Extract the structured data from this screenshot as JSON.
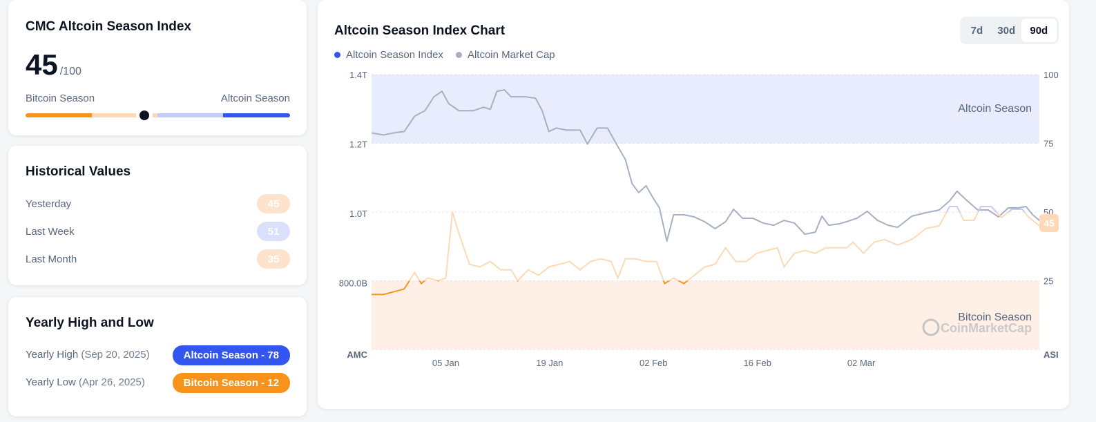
{
  "index_card": {
    "title": "CMC Altcoin Season Index",
    "value": "45",
    "max": "/100",
    "left_label": "Bitcoin Season",
    "right_label": "Altcoin Season",
    "gauge_value": 45
  },
  "historical": {
    "title": "Historical Values",
    "rows": [
      {
        "label": "Yesterday",
        "value": "45",
        "color": "#fde3cc"
      },
      {
        "label": "Last Week",
        "value": "51",
        "color": "#d9e0fb"
      },
      {
        "label": "Last Month",
        "value": "35",
        "color": "#fde3cc"
      }
    ]
  },
  "yearly": {
    "title": "Yearly High and Low",
    "rows": [
      {
        "label": "Yearly High",
        "date": "(Sep 20, 2025)",
        "badge": "Altcoin Season - 78",
        "color": "#3356f0"
      },
      {
        "label": "Yearly Low",
        "date": "(Apr 26, 2025)",
        "badge": "Bitcoin Season - 12",
        "color": "#f7931a"
      }
    ]
  },
  "colors": {
    "orange": "#f7931a",
    "peach": "#fdd9b5",
    "light_blue": "#c3cbf8",
    "blue": "#3356f0",
    "gray": "#a6b0c3"
  },
  "chart_data": {
    "type": "line",
    "title": "Altcoin Season Index Chart",
    "tabs": [
      "7d",
      "30d",
      "90d"
    ],
    "active_tab": "90d",
    "legend": [
      "Altcoin Season Index",
      "Altcoin Market Cap"
    ],
    "left_axis": {
      "label": "AMC",
      "ticks": [
        {
          "v": 1400,
          "t": "1.4T"
        },
        {
          "v": 1200,
          "t": "1.2T"
        },
        {
          "v": 1000,
          "t": "1.0T"
        },
        {
          "v": 800,
          "t": "800.0B"
        }
      ],
      "range": [
        608,
        1400
      ],
      "unit": "B USD"
    },
    "right_axis": {
      "label": "ASI",
      "ticks": [
        100,
        75,
        50,
        25
      ],
      "range": [
        0,
        100
      ]
    },
    "x_ticks": [
      {
        "d": 10,
        "t": "05 Jan"
      },
      {
        "d": 24,
        "t": "19 Jan"
      },
      {
        "d": 38,
        "t": "02 Feb"
      },
      {
        "d": 52,
        "t": "16 Feb"
      },
      {
        "d": 66,
        "t": "02 Mar"
      }
    ],
    "x_range": [
      0,
      90
    ],
    "zones": {
      "altcoin": "Altcoin Season",
      "bitcoin": "Bitcoin Season"
    },
    "watermark": "CoinMarketCap",
    "current_label": "45",
    "series": [
      {
        "name": "Altcoin Market Cap",
        "axis": "left",
        "points": [
          [
            0,
            1232
          ],
          [
            1.6,
            1226
          ],
          [
            3,
            1232
          ],
          [
            4.4,
            1236
          ],
          [
            5.8,
            1280
          ],
          [
            7.2,
            1296
          ],
          [
            8.4,
            1336
          ],
          [
            9.5,
            1352
          ],
          [
            10.4,
            1316
          ],
          [
            11.8,
            1296
          ],
          [
            13.7,
            1296
          ],
          [
            15.1,
            1306
          ],
          [
            16,
            1300
          ],
          [
            16.9,
            1352
          ],
          [
            17.9,
            1356
          ],
          [
            18.8,
            1336
          ],
          [
            20.7,
            1336
          ],
          [
            22.1,
            1332
          ],
          [
            23,
            1296
          ],
          [
            23.9,
            1236
          ],
          [
            24.9,
            1246
          ],
          [
            26.3,
            1240
          ],
          [
            28.1,
            1240
          ],
          [
            29.1,
            1200
          ],
          [
            30.4,
            1246
          ],
          [
            31.8,
            1246
          ],
          [
            33.1,
            1196
          ],
          [
            34.2,
            1156
          ],
          [
            35.1,
            1086
          ],
          [
            36,
            1060
          ],
          [
            37,
            1080
          ],
          [
            37.9,
            1046
          ],
          [
            38.8,
            1016
          ],
          [
            39.8,
            920
          ],
          [
            40.7,
            996
          ],
          [
            42.1,
            996
          ],
          [
            43.5,
            990
          ],
          [
            44.9,
            976
          ],
          [
            46.3,
            956
          ],
          [
            47.7,
            976
          ],
          [
            48.8,
            1012
          ],
          [
            50,
            986
          ],
          [
            51.4,
            986
          ],
          [
            52.8,
            972
          ],
          [
            54.2,
            966
          ],
          [
            55.6,
            980
          ],
          [
            57,
            972
          ],
          [
            58.4,
            940
          ],
          [
            59.8,
            946
          ],
          [
            60.7,
            992
          ],
          [
            61.6,
            966
          ],
          [
            63,
            970
          ],
          [
            64,
            976
          ],
          [
            65.4,
            986
          ],
          [
            66.8,
            1006
          ],
          [
            68.2,
            980
          ],
          [
            69.6,
            966
          ],
          [
            70.9,
            960
          ],
          [
            72.8,
            992
          ],
          [
            74.7,
            1002
          ],
          [
            76.5,
            1010
          ],
          [
            77.9,
            1036
          ],
          [
            78.9,
            1064
          ],
          [
            80.3,
            1036
          ],
          [
            81.7,
            1010
          ],
          [
            83.1,
            1010
          ],
          [
            84.5,
            990
          ],
          [
            85.8,
            1016
          ],
          [
            87.2,
            1016
          ],
          [
            88.2,
            1020
          ],
          [
            89.1,
            996
          ],
          [
            90,
            980
          ]
        ]
      },
      {
        "name": "Altcoin Season Index",
        "axis": "right",
        "points": [
          [
            0,
            20
          ],
          [
            1.6,
            20
          ],
          [
            3,
            21
          ],
          [
            4.4,
            22
          ],
          [
            5.8,
            28
          ],
          [
            6.7,
            24
          ],
          [
            7.6,
            26
          ],
          [
            9,
            25
          ],
          [
            10,
            26
          ],
          [
            10.9,
            50
          ],
          [
            11.8,
            42
          ],
          [
            13.2,
            31
          ],
          [
            14.6,
            30
          ],
          [
            16,
            32
          ],
          [
            17.4,
            29
          ],
          [
            18.8,
            29
          ],
          [
            19.7,
            25
          ],
          [
            21.1,
            29
          ],
          [
            22.5,
            27
          ],
          [
            23.9,
            30
          ],
          [
            25.3,
            31
          ],
          [
            26.7,
            32
          ],
          [
            28.1,
            29
          ],
          [
            29.5,
            32
          ],
          [
            30.9,
            33
          ],
          [
            32.3,
            32
          ],
          [
            33.2,
            26
          ],
          [
            34.2,
            33
          ],
          [
            35.6,
            33
          ],
          [
            37,
            32
          ],
          [
            38.4,
            32
          ],
          [
            39.5,
            24
          ],
          [
            40.7,
            26
          ],
          [
            42.1,
            24
          ],
          [
            43.5,
            27
          ],
          [
            44.9,
            30
          ],
          [
            46.3,
            31
          ],
          [
            47.7,
            37
          ],
          [
            49.1,
            32
          ],
          [
            50.5,
            32
          ],
          [
            51.9,
            35
          ],
          [
            53.3,
            36
          ],
          [
            54.7,
            37
          ],
          [
            55.6,
            30
          ],
          [
            57,
            35
          ],
          [
            58.4,
            36
          ],
          [
            59.8,
            35
          ],
          [
            61.2,
            37
          ],
          [
            62.6,
            37
          ],
          [
            64,
            37
          ],
          [
            64.9,
            39
          ],
          [
            66.3,
            35
          ],
          [
            67.7,
            39
          ],
          [
            69.1,
            40
          ],
          [
            70.9,
            38
          ],
          [
            72.8,
            40
          ],
          [
            74.7,
            44
          ],
          [
            76.5,
            45
          ],
          [
            77.9,
            52
          ],
          [
            78.9,
            52
          ],
          [
            79.8,
            47
          ],
          [
            81.2,
            47
          ],
          [
            82.1,
            52
          ],
          [
            83.5,
            52
          ],
          [
            84.9,
            48
          ],
          [
            86.3,
            51
          ],
          [
            87.7,
            51
          ],
          [
            88.6,
            48
          ],
          [
            90,
            45
          ]
        ]
      }
    ]
  }
}
